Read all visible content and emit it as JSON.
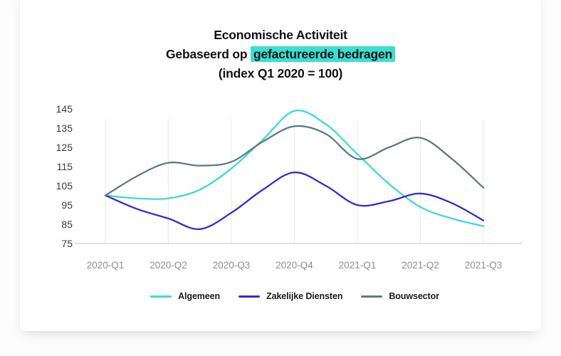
{
  "title": {
    "line1": "Economische Activiteit",
    "line2_prefix": "Gebaseerd op ",
    "line2_highlight": "gefactureerde bedragen",
    "line3": "(index Q1 2020 = 100)",
    "highlight_color": "#39e0d2",
    "text_color": "#121212"
  },
  "chart_data": {
    "type": "line",
    "title": "Economische Activiteit",
    "subtitle": "Gebaseerd op gefactureerde bedragen (index Q1 2020 = 100)",
    "categories": [
      "2020-Q1",
      "2020-Q2",
      "2020-Q3",
      "2020-Q4",
      "2021-Q1",
      "2021-Q2",
      "2021-Q3"
    ],
    "series": [
      {
        "name": "Algemeen",
        "color": "#3cd9da",
        "values": [
          100,
          98.5,
          114,
          144,
          121.5,
          94,
          84
        ],
        "curve_samples": [
          100,
          98.5,
          98.5,
          103,
          114,
          129,
          144,
          137,
          121.5,
          106,
          94,
          88,
          84
        ]
      },
      {
        "name": "Zakelijke Diensten",
        "color": "#3629d8",
        "values": [
          100,
          88,
          91,
          112,
          95,
          101,
          87
        ],
        "curve_samples": [
          100,
          93,
          88,
          82.5,
          91,
          103,
          112,
          105,
          95,
          97,
          101,
          96,
          87
        ]
      },
      {
        "name": "Bouwsector",
        "color": "#5c7a8b",
        "values": [
          100,
          117,
          117.5,
          136,
          119,
          130,
          104
        ],
        "curve_samples": [
          100,
          110,
          117,
          115.5,
          117.5,
          128,
          136,
          132,
          119,
          125,
          130,
          119,
          104
        ]
      }
    ],
    "ylim": [
      75,
      145
    ],
    "yticks": [
      145,
      135,
      125,
      115,
      105,
      95,
      85,
      75
    ],
    "index_base": "Q1 2020 = 100",
    "grid": "vertical-only",
    "legend_position": "bottom",
    "colors": {
      "gridline": "#ececec",
      "axis_line": "#cfcfcf",
      "y_tick_label": "#3a3a3a",
      "x_tick_label": "#8e8e8e"
    }
  }
}
